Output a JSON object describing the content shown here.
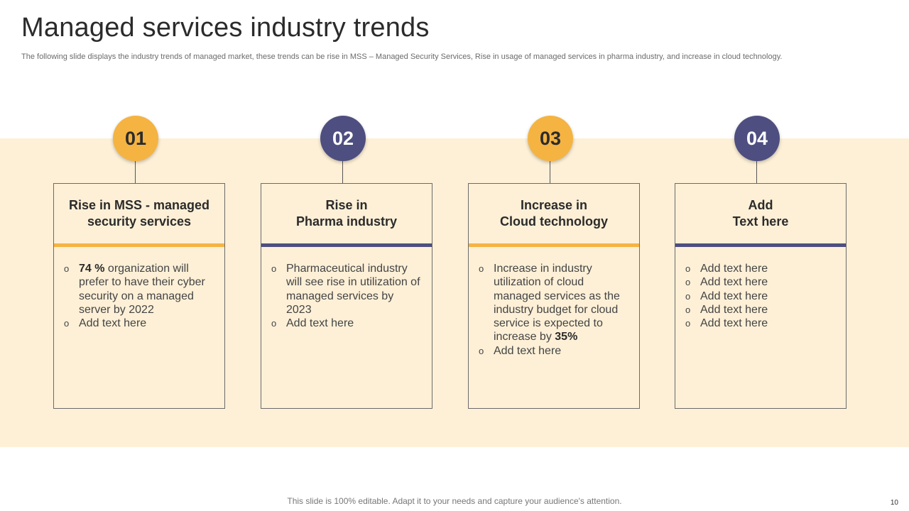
{
  "header": {
    "title": "Managed services industry trends",
    "subtitle": "The following slide displays the industry trends of managed market, these trends can be rise in MSS – Managed Security Services, Rise in usage of managed services in pharma industry, and increase in cloud technology."
  },
  "colors": {
    "orange": "#f5b342",
    "purple": "#4e4e80",
    "band": "#fdf0d7"
  },
  "cards": [
    {
      "number": "01",
      "heading_line1": "Rise in MSS - managed",
      "heading_line2": "security services",
      "b1_bold": "74 %",
      "b1_text": " organization will prefer to have their cyber security on a managed server by 2022",
      "b2_text": "Add text here"
    },
    {
      "number": "02",
      "heading_line1": "Rise in",
      "heading_line2": "Pharma industry",
      "b1_text": "Pharmaceutical industry will see rise in utilization of managed services by 2023",
      "b2_text": "Add text here"
    },
    {
      "number": "03",
      "heading_line1": "Increase in",
      "heading_line2": "Cloud technology",
      "b1_text": "Increase  in industry utilization of cloud managed services as the industry budget for cloud service is expected to increase by ",
      "b1_bold": "35%",
      "b2_text": "Add text here"
    },
    {
      "number": "04",
      "heading_line1": "Add",
      "heading_line2": "Text here",
      "items": [
        "Add text here",
        "Add text here",
        "Add text here",
        "Add text here",
        "Add text here"
      ]
    }
  ],
  "bullet_glyph": "o",
  "footer": {
    "note": "This slide is 100% editable. Adapt it to your needs and capture your audience's attention.",
    "page_number": "10"
  }
}
